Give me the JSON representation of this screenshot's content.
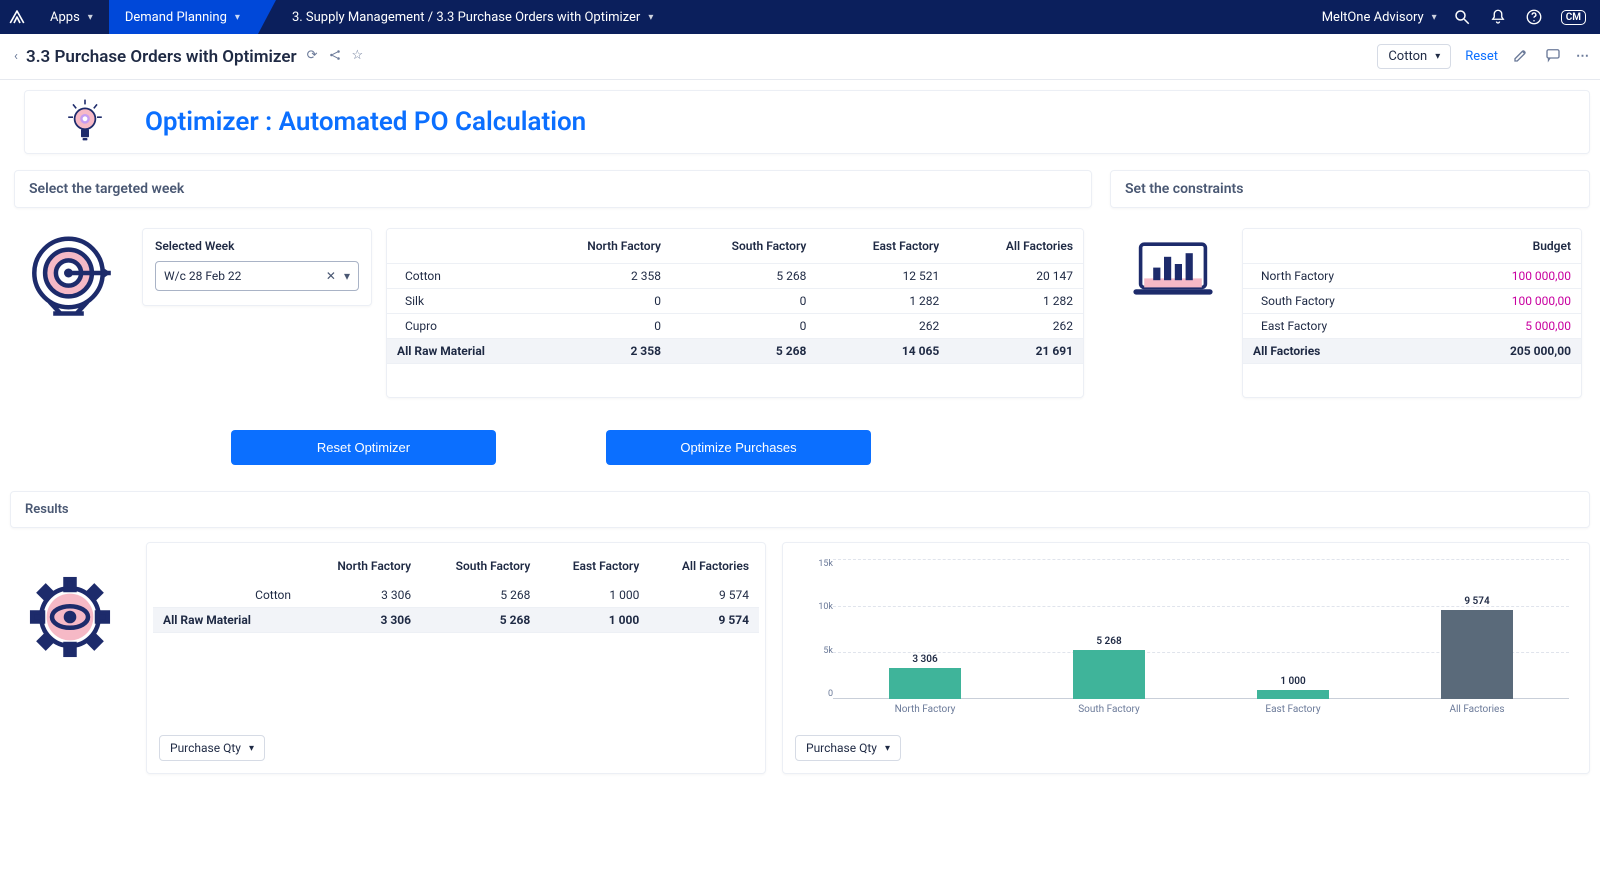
{
  "nav": {
    "apps": "Apps",
    "demand_planning": "Demand Planning",
    "breadcrumb": "3. Supply Management / 3.3 Purchase Orders with Optimizer",
    "workspace": "MeltOne Advisory",
    "avatar": "CM"
  },
  "page": {
    "title": "3.3 Purchase Orders with Optimizer",
    "context_chip": "Cotton",
    "reset": "Reset"
  },
  "main_title": "Optimizer : Automated PO Calculation",
  "section": {
    "left_title": "Select the targeted week",
    "right_title": "Set the constraints"
  },
  "picker": {
    "label": "Selected Week",
    "value": "W/c 28 Feb 22"
  },
  "demand_table": {
    "columns": [
      "",
      "North Factory",
      "South Factory",
      "East Factory",
      "All Factories"
    ],
    "rows": [
      {
        "label": "Cotton",
        "vals": [
          "2 358",
          "5 268",
          "12 521",
          "20 147"
        ]
      },
      {
        "label": "Silk",
        "vals": [
          "0",
          "0",
          "1 282",
          "1 282"
        ]
      },
      {
        "label": "Cupro",
        "vals": [
          "0",
          "0",
          "262",
          "262"
        ]
      }
    ],
    "total": {
      "label": "All Raw Material",
      "vals": [
        "2 358",
        "5 268",
        "14 065",
        "21 691"
      ]
    }
  },
  "budget_table": {
    "header": "Budget",
    "rows": [
      {
        "label": "North Factory",
        "val": "100 000,00"
      },
      {
        "label": "South Factory",
        "val": "100 000,00"
      },
      {
        "label": "East Factory",
        "val": "5 000,00"
      }
    ],
    "total": {
      "label": "All Factories",
      "val": "205 000,00"
    }
  },
  "actions": {
    "reset": "Reset Optimizer",
    "optimize": "Optimize Purchases"
  },
  "results": {
    "title": "Results",
    "table": {
      "columns": [
        "",
        "North Factory",
        "South Factory",
        "East Factory",
        "All Factories"
      ],
      "rows": [
        {
          "label": "Cotton",
          "vals": [
            "3 306",
            "5 268",
            "1 000",
            "9 574"
          ]
        }
      ],
      "total": {
        "label": "All Raw Material",
        "vals": [
          "3 306",
          "5 268",
          "1 000",
          "9 574"
        ]
      }
    },
    "dropdown": "Purchase Qty",
    "chart": {
      "type": "bar",
      "ylim": [
        0,
        15000
      ],
      "yticks": [
        "15k",
        "10k",
        "5k",
        "0"
      ],
      "categories": [
        "North Factory",
        "South Factory",
        "East Factory",
        "All Factories"
      ],
      "values": [
        3306,
        5268,
        1000,
        9574
      ],
      "labels": [
        "3 306",
        "5 268",
        "1 000",
        "9 574"
      ],
      "bar_colors": [
        "#3fb49a",
        "#3fb49a",
        "#3fb49a",
        "#5a6a7a"
      ],
      "grid_color": "#e0e4ec",
      "baseline_color": "#c9cfd9"
    }
  },
  "colors": {
    "accent_blue": "#0b6fff",
    "nav_dark": "#0b1f5c",
    "nav_active": "#0048d9",
    "magenta": "#c800a0"
  }
}
